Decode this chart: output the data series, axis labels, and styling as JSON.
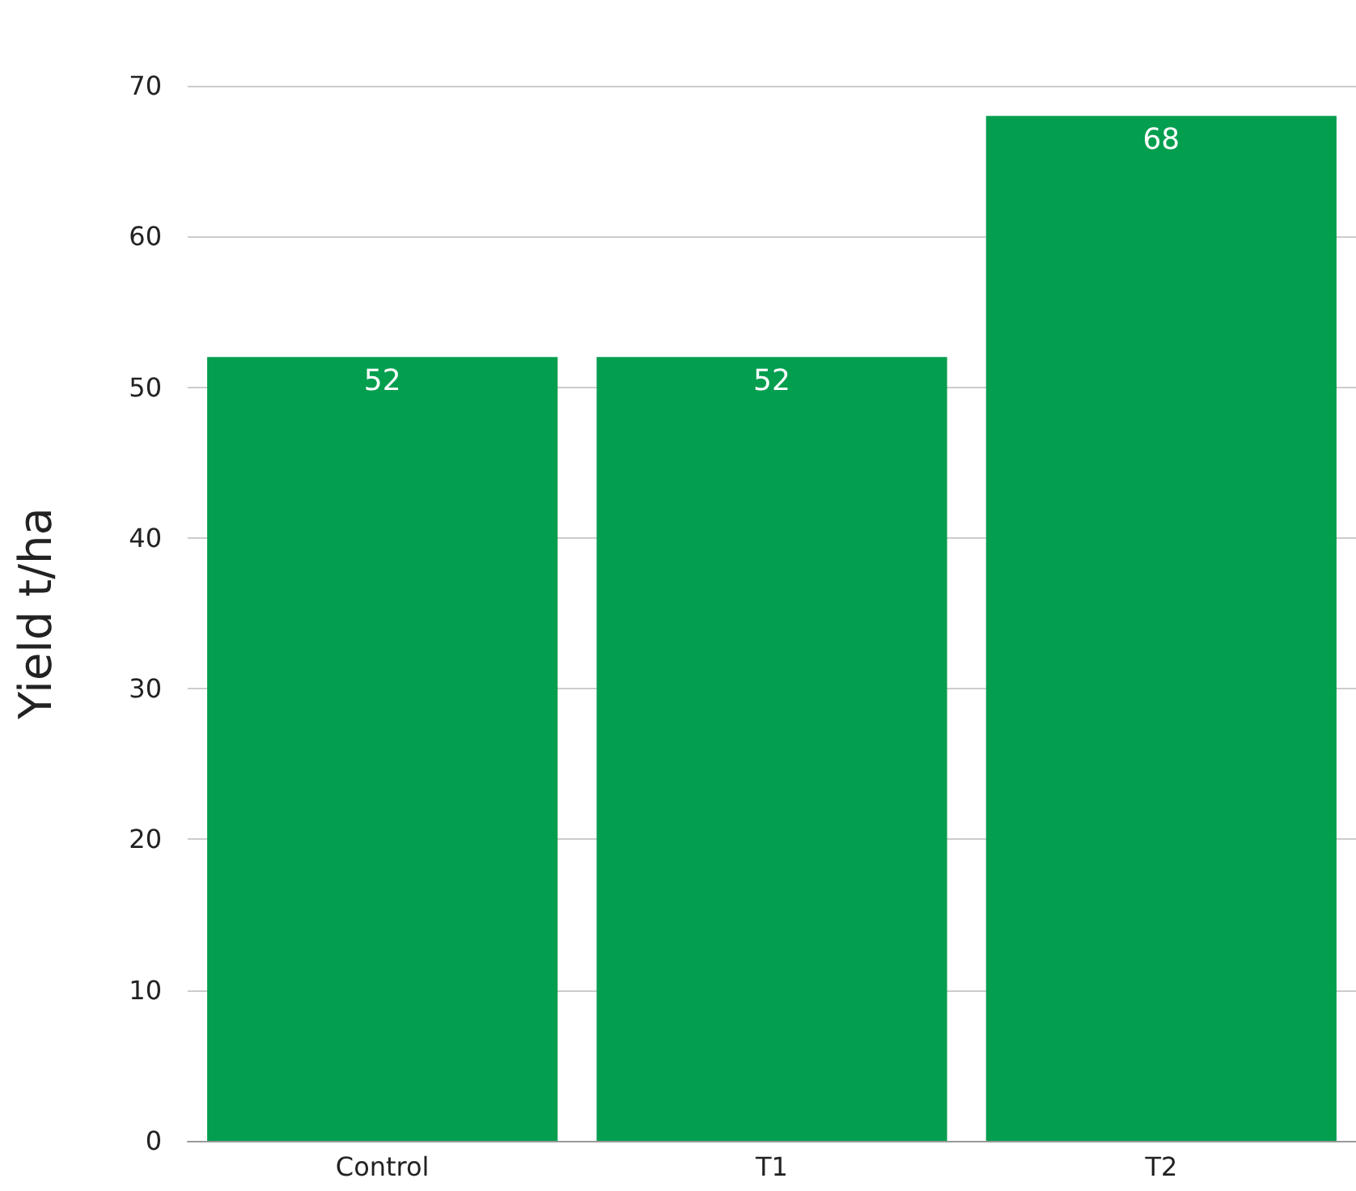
{
  "chart_data": {
    "type": "bar",
    "ylabel": "Yield t/ha",
    "categories": [
      "Control",
      "T1",
      "T2"
    ],
    "values": [
      52,
      52,
      68
    ],
    "color": "#049e4f",
    "ylim": [
      0,
      70
    ],
    "yticks": [
      0,
      10,
      20,
      30,
      40,
      50,
      60,
      70
    ],
    "grid": "y",
    "data_labels": true
  }
}
